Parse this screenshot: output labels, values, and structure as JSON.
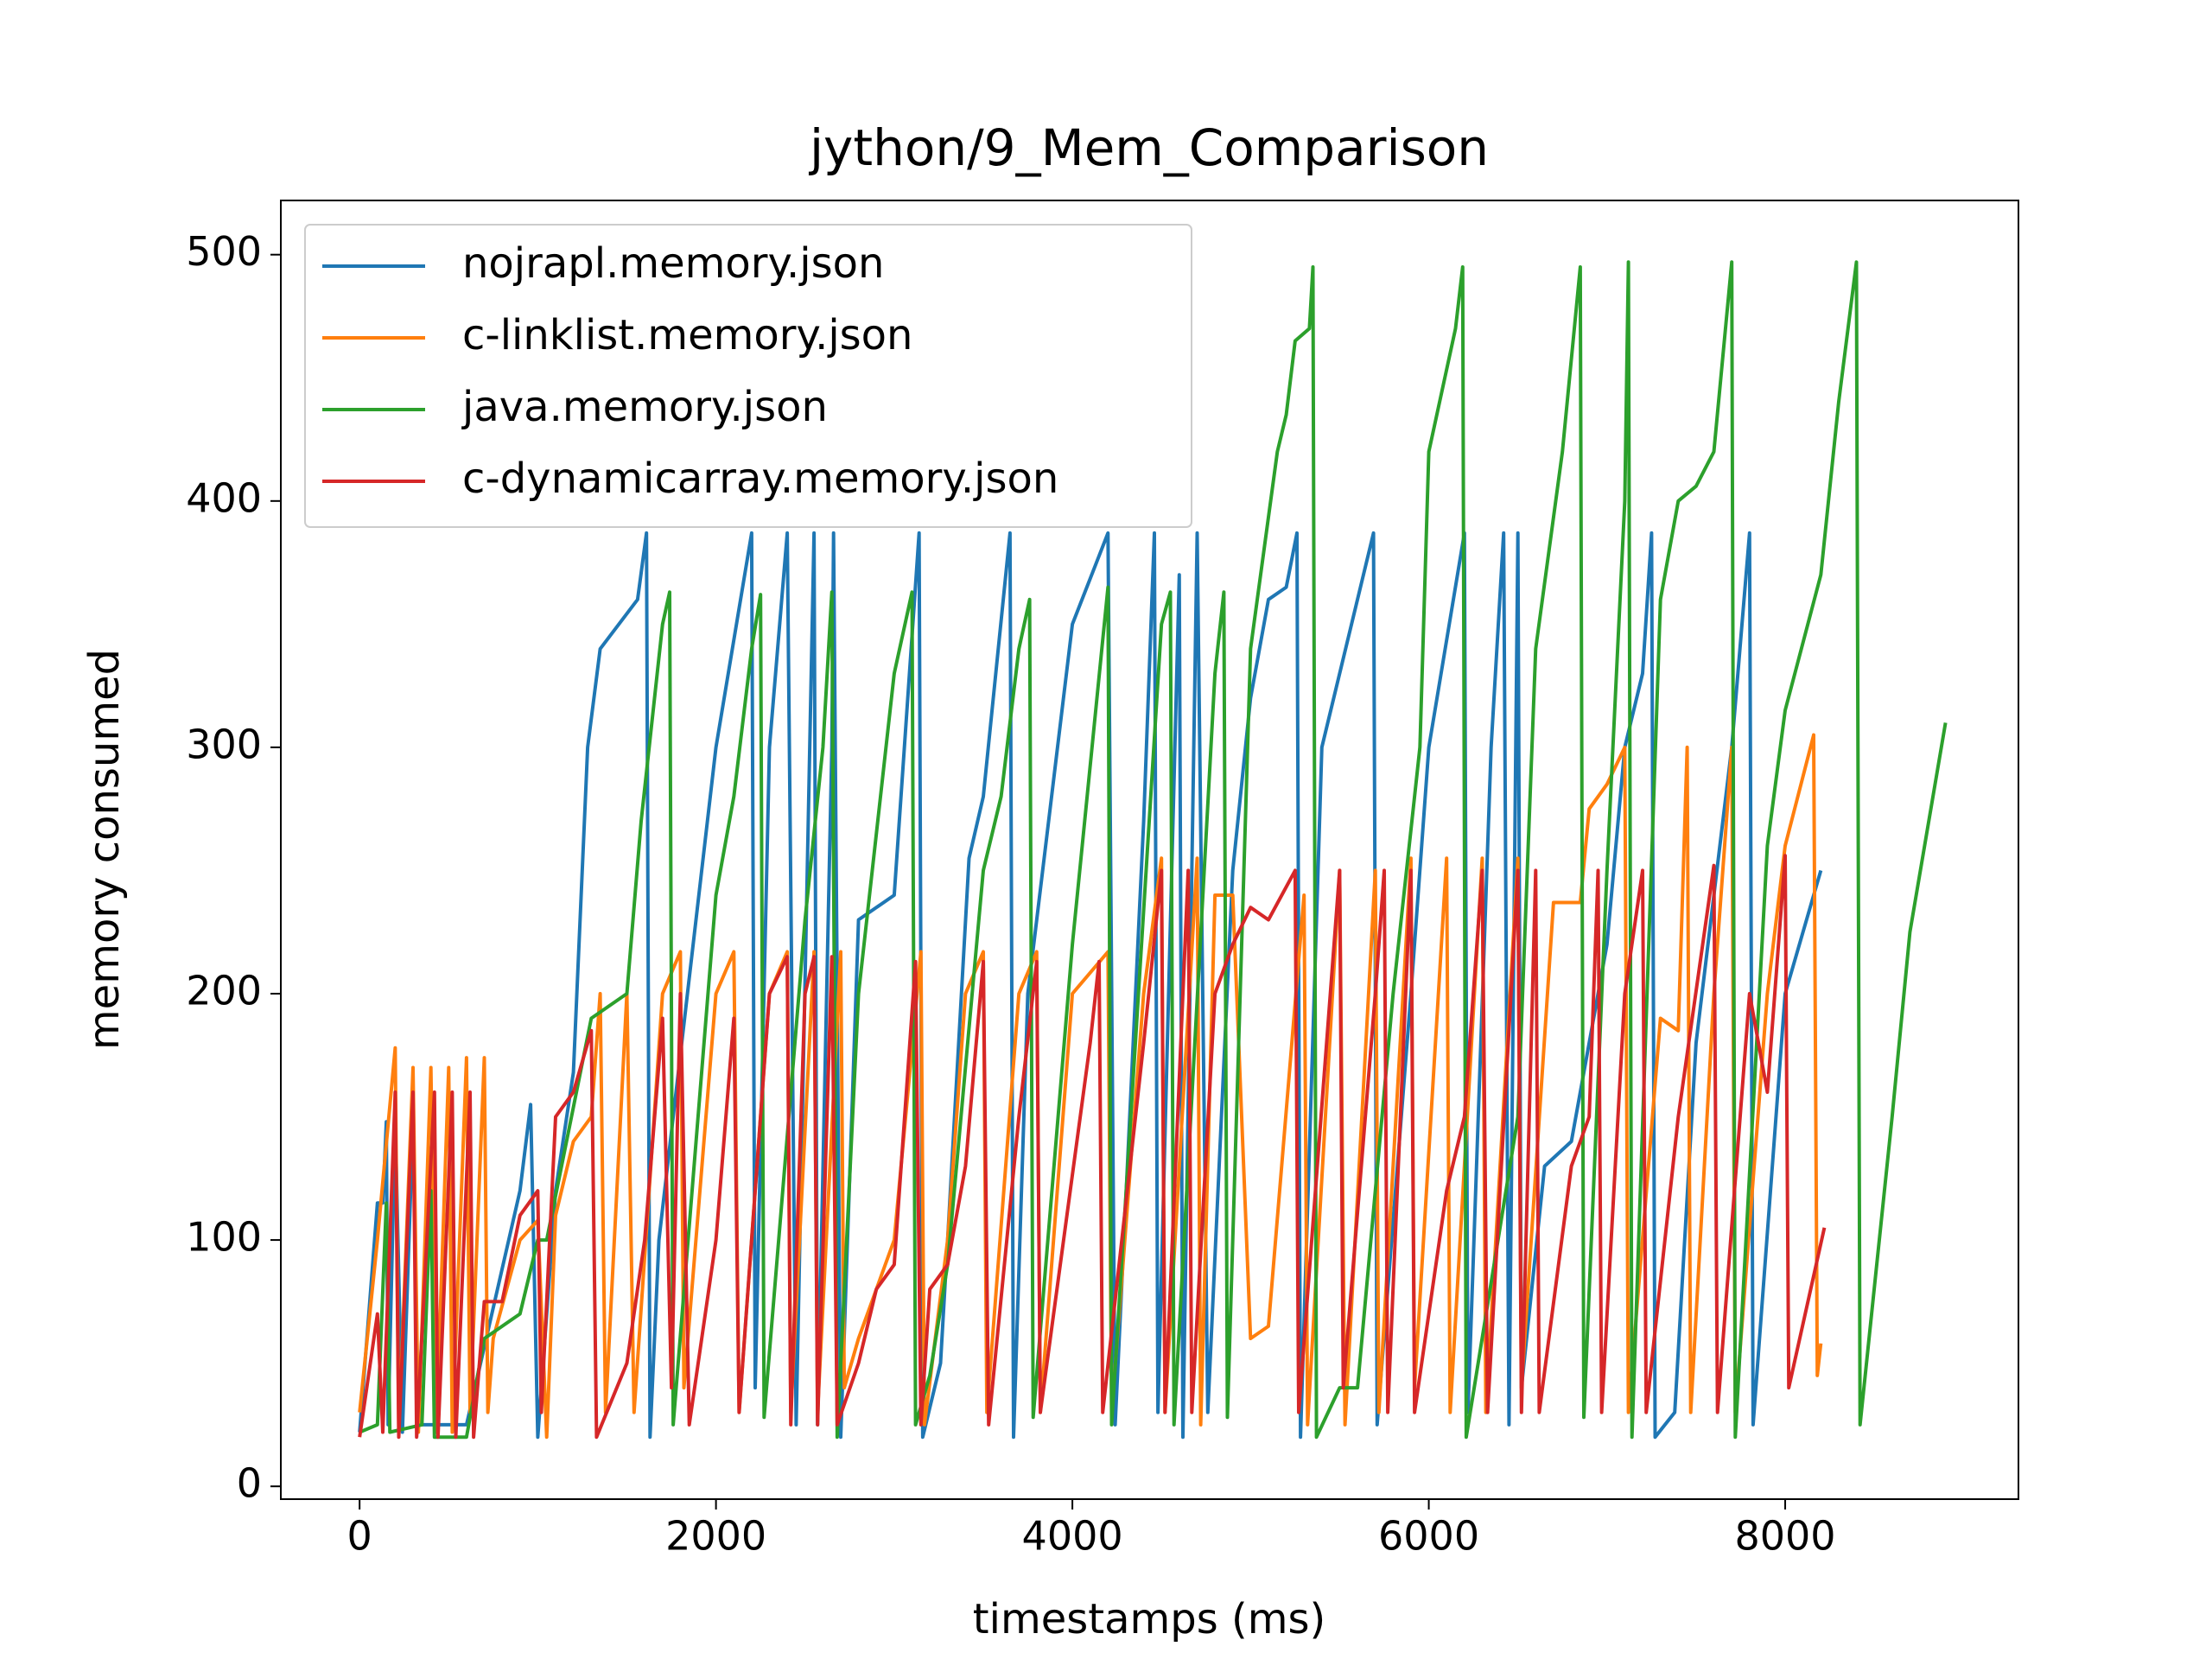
{
  "chart_data": {
    "type": "line",
    "title": "jython/9_Mem_Comparison",
    "x_label": "timestamps (ms)",
    "y_label": "memory consumed",
    "xlim": [
      -442,
      9309
    ],
    "ylim": [
      -5.2,
      522
    ],
    "xticks": [
      0,
      2000,
      4000,
      6000,
      8000
    ],
    "yticks": [
      0,
      100,
      200,
      300,
      400,
      500
    ],
    "grid": false,
    "legend": "upper left",
    "series": [
      {
        "name": "nojrapl.memory.json",
        "color": "#1f77b4",
        "x": [
          0,
          100,
          130,
          150,
          160,
          200,
          240,
          300,
          330,
          600,
          900,
          960,
          1000,
          1100,
          1200,
          1280,
          1350,
          1560,
          1610,
          1630,
          1680,
          2000,
          2200,
          2220,
          2300,
          2400,
          2450,
          2550,
          2570,
          2650,
          2660,
          2700,
          2800,
          3000,
          3140,
          3160,
          3260,
          3300,
          3420,
          3500,
          3650,
          3670,
          3750,
          4000,
          4200,
          4240,
          4400,
          4460,
          4480,
          4600,
          4620,
          4700,
          4760,
          4900,
          5000,
          5100,
          5200,
          5260,
          5280,
          5400,
          5690,
          5710,
          5900,
          6000,
          6200,
          6220,
          6350,
          6420,
          6450,
          6500,
          6520,
          6650,
          6800,
          7000,
          7100,
          7200,
          7250,
          7270,
          7380,
          7500,
          7700,
          7800,
          7820,
          8000,
          8200
        ],
        "values": [
          22,
          115,
          115,
          148,
          25,
          148,
          22,
          148,
          25,
          25,
          120,
          155,
          20,
          120,
          168,
          300,
          340,
          360,
          387,
          20,
          100,
          300,
          387,
          40,
          300,
          387,
          25,
          387,
          25,
          300,
          387,
          20,
          230,
          240,
          387,
          20,
          50,
          100,
          255,
          280,
          387,
          20,
          200,
          350,
          387,
          25,
          270,
          387,
          30,
          370,
          20,
          387,
          30,
          250,
          320,
          360,
          365,
          387,
          20,
          300,
          387,
          25,
          200,
          300,
          387,
          30,
          300,
          387,
          25,
          387,
          40,
          130,
          140,
          220,
          300,
          330,
          387,
          20,
          30,
          180,
          300,
          387,
          25,
          200,
          250
        ]
      },
      {
        "name": "c-linklist.memory.json",
        "color": "#ff7f0e",
        "x": [
          0,
          100,
          200,
          220,
          300,
          330,
          400,
          430,
          500,
          520,
          600,
          620,
          700,
          720,
          750,
          900,
          1000,
          1050,
          1100,
          1200,
          1300,
          1350,
          1380,
          1500,
          1540,
          1700,
          1800,
          1820,
          2000,
          2100,
          2130,
          2300,
          2400,
          2420,
          2550,
          2570,
          2700,
          2720,
          2800,
          3000,
          3150,
          3170,
          3300,
          3400,
          3500,
          3520,
          3700,
          3800,
          3820,
          4000,
          4200,
          4220,
          4400,
          4500,
          4520,
          4700,
          4720,
          4800,
          4900,
          5000,
          5100,
          5300,
          5320,
          5500,
          5530,
          5700,
          5720,
          5900,
          5920,
          6100,
          6120,
          6300,
          6320,
          6500,
          6520,
          6700,
          6850,
          6900,
          7000,
          7100,
          7120,
          7300,
          7400,
          7450,
          7470,
          7600,
          7700,
          7720,
          7900,
          8000,
          8160,
          8180,
          8200
        ],
        "values": [
          30,
          100,
          178,
          22,
          170,
          22,
          170,
          22,
          170,
          22,
          174,
          30,
          174,
          30,
          60,
          100,
          108,
          20,
          110,
          140,
          150,
          200,
          30,
          200,
          30,
          200,
          217,
          40,
          200,
          217,
          30,
          200,
          217,
          30,
          217,
          30,
          217,
          40,
          60,
          100,
          217,
          25,
          100,
          200,
          217,
          30,
          200,
          217,
          30,
          200,
          217,
          30,
          200,
          255,
          30,
          255,
          25,
          240,
          240,
          60,
          65,
          240,
          25,
          250,
          25,
          250,
          30,
          255,
          40,
          255,
          30,
          255,
          30,
          255,
          40,
          237,
          237,
          275,
          285,
          300,
          30,
          190,
          185,
          300,
          30,
          200,
          300,
          30,
          200,
          260,
          305,
          45,
          58
        ]
      },
      {
        "name": "java.memory.json",
        "color": "#2ca02c",
        "x": [
          0,
          100,
          150,
          170,
          350,
          400,
          420,
          600,
          700,
          900,
          1000,
          1050,
          1300,
          1500,
          1580,
          1700,
          1740,
          1760,
          2000,
          2100,
          2200,
          2250,
          2270,
          2500,
          2600,
          2650,
          2680,
          2800,
          3000,
          3100,
          3120,
          3200,
          3300,
          3500,
          3600,
          3700,
          3760,
          3780,
          4000,
          4200,
          4220,
          4500,
          4550,
          4570,
          4800,
          4850,
          4870,
          5000,
          5150,
          5200,
          5250,
          5330,
          5350,
          5370,
          5500,
          5600,
          5800,
          5950,
          6000,
          6150,
          6190,
          6210,
          6500,
          6600,
          6750,
          6850,
          6870,
          7000,
          7100,
          7120,
          7140,
          7300,
          7400,
          7500,
          7600,
          7700,
          7720,
          7900,
          8000,
          8200,
          8300,
          8400,
          8420,
          8600,
          8700,
          8900
        ],
        "values": [
          22,
          25,
          115,
          22,
          25,
          120,
          20,
          20,
          60,
          70,
          100,
          100,
          190,
          200,
          270,
          350,
          363,
          25,
          240,
          280,
          340,
          362,
          28,
          230,
          300,
          363,
          20,
          200,
          330,
          363,
          25,
          45,
          90,
          250,
          280,
          340,
          360,
          28,
          220,
          365,
          25,
          350,
          363,
          25,
          330,
          363,
          28,
          340,
          420,
          435,
          465,
          470,
          495,
          20,
          40,
          40,
          200,
          300,
          420,
          470,
          495,
          20,
          150,
          340,
          420,
          495,
          28,
          250,
          400,
          497,
          20,
          360,
          400,
          406,
          420,
          497,
          20,
          260,
          315,
          370,
          440,
          497,
          25,
          150,
          225,
          310
        ]
      },
      {
        "name": "c-dynamicarray.memory.json",
        "color": "#d62728",
        "x": [
          0,
          100,
          130,
          200,
          220,
          300,
          320,
          420,
          440,
          520,
          540,
          620,
          640,
          700,
          800,
          900,
          1000,
          1020,
          1100,
          1200,
          1300,
          1330,
          1500,
          1600,
          1700,
          1750,
          1800,
          1850,
          2000,
          2100,
          2130,
          2300,
          2400,
          2420,
          2500,
          2550,
          2570,
          2650,
          2680,
          2800,
          2900,
          3000,
          3120,
          3150,
          3200,
          3300,
          3400,
          3500,
          3530,
          3700,
          3800,
          3820,
          4100,
          4150,
          4170,
          4400,
          4500,
          4520,
          4650,
          4670,
          4800,
          4900,
          5000,
          5100,
          5250,
          5270,
          5500,
          5520,
          5700,
          5750,
          5770,
          5900,
          5920,
          6100,
          6200,
          6300,
          6330,
          6500,
          6520,
          6600,
          6620,
          6800,
          6900,
          6950,
          6970,
          7100,
          7200,
          7220,
          7400,
          7600,
          7620,
          7800,
          7900,
          8000,
          8020,
          8220
        ],
        "values": [
          20,
          70,
          22,
          160,
          20,
          160,
          20,
          160,
          20,
          160,
          20,
          160,
          20,
          75,
          75,
          110,
          120,
          30,
          150,
          160,
          185,
          20,
          50,
          100,
          190,
          40,
          200,
          25,
          100,
          190,
          30,
          200,
          215,
          25,
          200,
          215,
          25,
          215,
          25,
          50,
          80,
          90,
          213,
          25,
          80,
          90,
          130,
          213,
          25,
          150,
          213,
          30,
          180,
          213,
          30,
          180,
          250,
          30,
          250,
          30,
          200,
          220,
          235,
          230,
          250,
          30,
          250,
          40,
          200,
          250,
          30,
          250,
          30,
          120,
          150,
          250,
          30,
          250,
          30,
          250,
          30,
          130,
          150,
          250,
          30,
          200,
          250,
          30,
          150,
          252,
          30,
          200,
          160,
          256,
          40,
          105
        ]
      }
    ]
  }
}
